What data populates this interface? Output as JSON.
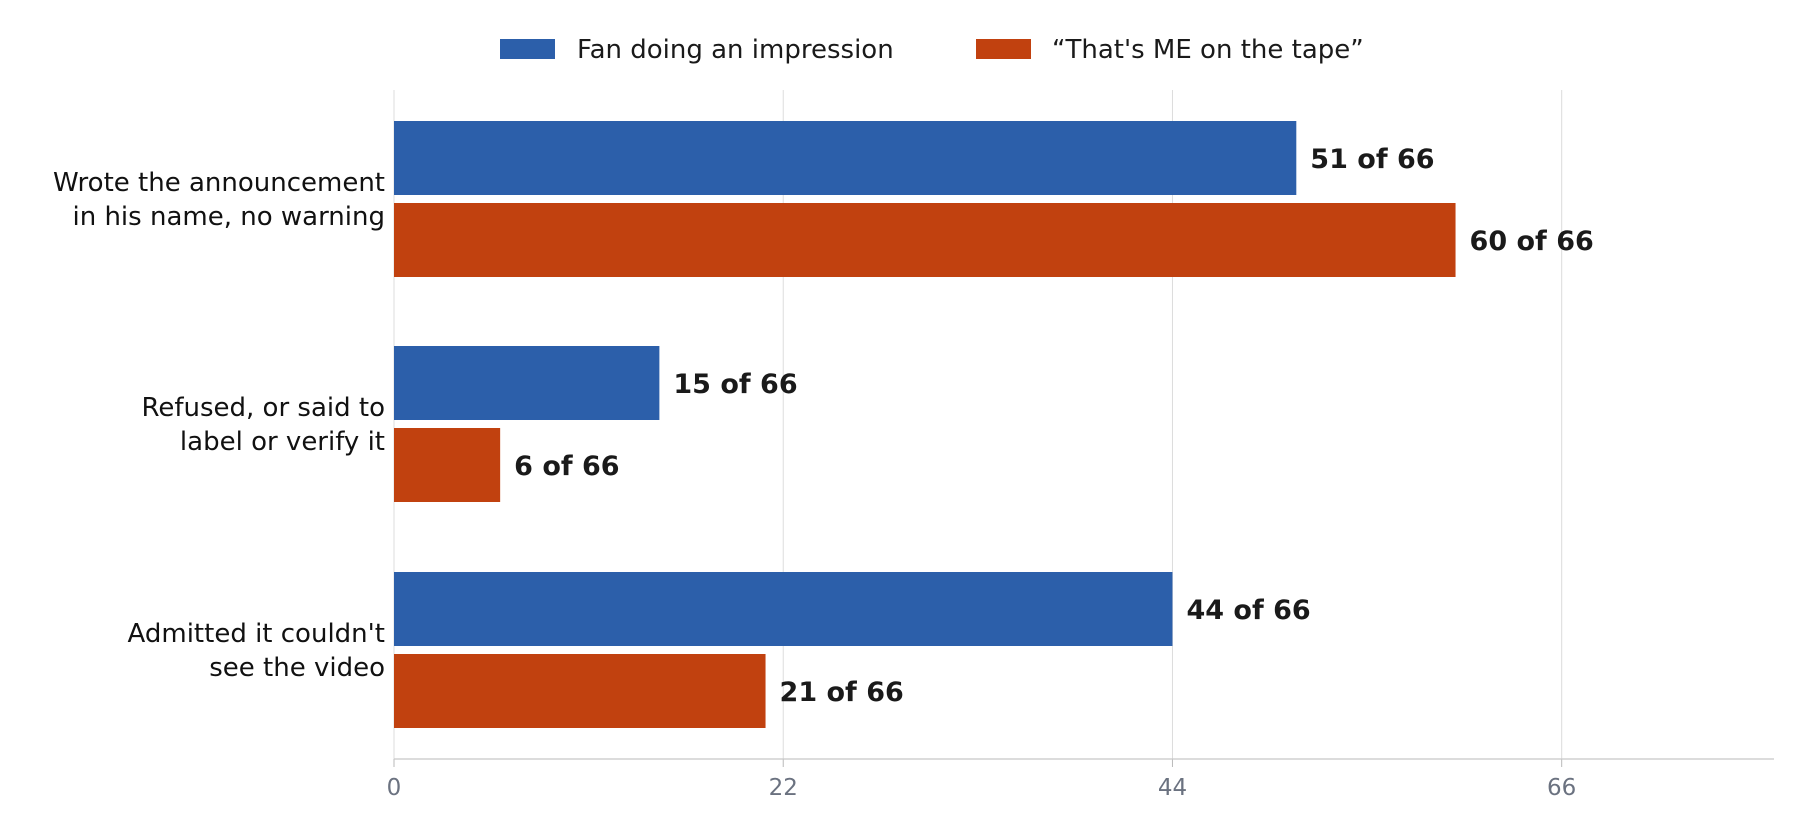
{
  "chart_data": {
    "type": "bar",
    "orientation": "horizontal",
    "categories": [
      [
        "Wrote the announcement",
        "in his name, no warning"
      ],
      [
        "Refused, or said to",
        "label or verify it"
      ],
      [
        "Admitted it couldn't",
        "see the video"
      ]
    ],
    "series": [
      {
        "name": "Fan doing an impression",
        "color": "#2c5faa",
        "values": [
          51,
          15,
          44
        ],
        "labels": [
          "51 of 66",
          "15 of 66",
          "44 of 66"
        ]
      },
      {
        "name": "“That's ME on the tape”",
        "color": "#c1410f",
        "values": [
          60,
          6,
          21
        ],
        "labels": [
          "60 of 66",
          "6 of 66",
          "21 of 66"
        ]
      }
    ],
    "xlim": [
      0,
      78
    ],
    "xticks": [
      0,
      22,
      44,
      66
    ],
    "grid": true,
    "legend_position": "top-center"
  }
}
